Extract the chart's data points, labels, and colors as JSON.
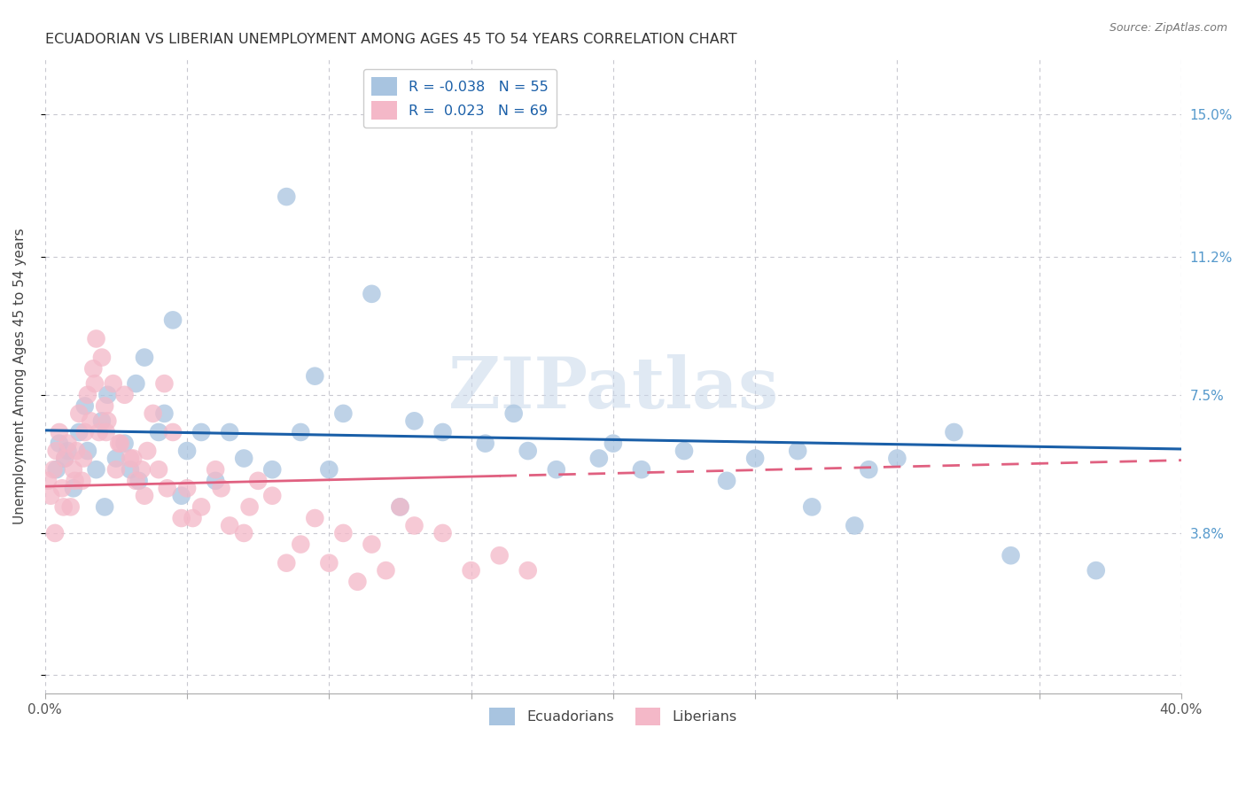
{
  "title": "ECUADORIAN VS LIBERIAN UNEMPLOYMENT AMONG AGES 45 TO 54 YEARS CORRELATION CHART",
  "source": "Source: ZipAtlas.com",
  "xlabel": "",
  "ylabel": "Unemployment Among Ages 45 to 54 years",
  "xlim": [
    0.0,
    40.0
  ],
  "ylim": [
    -0.5,
    16.5
  ],
  "yticks": [
    0.0,
    3.8,
    7.5,
    11.2,
    15.0
  ],
  "ytick_labels": [
    "",
    "3.8%",
    "7.5%",
    "11.2%",
    "15.0%"
  ],
  "xticks": [
    0.0,
    5.0,
    10.0,
    15.0,
    20.0,
    25.0,
    30.0,
    35.0,
    40.0
  ],
  "xtick_labels_show": [
    "0.0%",
    "",
    "",
    "",
    "",
    "",
    "",
    "",
    "40.0%"
  ],
  "blue_R": "-0.038",
  "blue_N": "55",
  "pink_R": "0.023",
  "pink_N": "69",
  "blue_color": "#a8c4e0",
  "pink_color": "#f4b8c8",
  "blue_line_color": "#1a5fa8",
  "pink_line_color": "#e06080",
  "background_color": "#ffffff",
  "grid_color": "#c8c8d0",
  "blue_trend_start_y": 6.55,
  "blue_trend_end_y": 6.05,
  "pink_trend_start_y": 5.05,
  "pink_trend_end_y": 5.75,
  "pink_solid_end_x": 16.0,
  "ecuadorians_x": [
    0.4,
    0.5,
    0.7,
    0.8,
    1.0,
    1.2,
    1.4,
    1.5,
    1.8,
    2.0,
    2.2,
    2.5,
    2.8,
    3.0,
    3.2,
    3.5,
    4.0,
    4.2,
    4.5,
    5.0,
    5.5,
    6.0,
    7.0,
    8.0,
    9.0,
    9.5,
    10.5,
    11.5,
    13.0,
    14.0,
    15.5,
    16.5,
    17.0,
    18.0,
    19.5,
    21.0,
    24.0,
    25.0,
    26.5,
    27.0,
    28.5,
    30.0,
    32.0,
    34.0,
    37.0,
    2.1,
    3.3,
    4.8,
    6.5,
    8.5,
    10.0,
    12.5,
    20.0,
    22.5,
    29.0
  ],
  "ecuadorians_y": [
    5.5,
    6.2,
    5.8,
    6.0,
    5.0,
    6.5,
    7.2,
    6.0,
    5.5,
    6.8,
    7.5,
    5.8,
    6.2,
    5.5,
    7.8,
    8.5,
    6.5,
    7.0,
    9.5,
    6.0,
    6.5,
    5.2,
    5.8,
    5.5,
    6.5,
    8.0,
    7.0,
    10.2,
    6.8,
    6.5,
    6.2,
    7.0,
    6.0,
    5.5,
    5.8,
    5.5,
    5.2,
    5.8,
    6.0,
    4.5,
    4.0,
    5.8,
    6.5,
    3.2,
    2.8,
    4.5,
    5.2,
    4.8,
    6.5,
    12.8,
    5.5,
    4.5,
    6.2,
    6.0,
    5.5
  ],
  "liberians_x": [
    0.1,
    0.2,
    0.3,
    0.4,
    0.5,
    0.6,
    0.7,
    0.8,
    0.9,
    1.0,
    1.1,
    1.2,
    1.3,
    1.4,
    1.5,
    1.6,
    1.7,
    1.8,
    1.9,
    2.0,
    2.1,
    2.2,
    2.4,
    2.5,
    2.6,
    2.8,
    3.0,
    3.2,
    3.4,
    3.6,
    3.8,
    4.0,
    4.2,
    4.5,
    4.8,
    5.0,
    5.5,
    6.0,
    6.5,
    7.0,
    7.5,
    8.0,
    8.5,
    9.0,
    9.5,
    10.0,
    10.5,
    11.0,
    11.5,
    12.0,
    12.5,
    13.0,
    14.0,
    15.0,
    16.0,
    17.0,
    0.35,
    0.65,
    1.05,
    1.35,
    1.75,
    2.15,
    2.65,
    3.1,
    3.5,
    4.3,
    5.2,
    6.2,
    7.2
  ],
  "liberians_y": [
    5.2,
    4.8,
    5.5,
    6.0,
    6.5,
    5.0,
    5.8,
    6.2,
    4.5,
    5.5,
    6.0,
    7.0,
    5.2,
    6.5,
    7.5,
    6.8,
    8.2,
    9.0,
    6.5,
    8.5,
    7.2,
    6.8,
    7.8,
    5.5,
    6.2,
    7.5,
    5.8,
    5.2,
    5.5,
    6.0,
    7.0,
    5.5,
    7.8,
    6.5,
    4.2,
    5.0,
    4.5,
    5.5,
    4.0,
    3.8,
    5.2,
    4.8,
    3.0,
    3.5,
    4.2,
    3.0,
    3.8,
    2.5,
    3.5,
    2.8,
    4.5,
    4.0,
    3.8,
    2.8,
    3.2,
    2.8,
    3.8,
    4.5,
    5.2,
    5.8,
    7.8,
    6.5,
    6.2,
    5.8,
    4.8,
    5.0,
    4.2,
    5.0,
    4.5
  ],
  "watermark": "ZIPatlas",
  "legend_ecuadorians": "Ecuadorians",
  "legend_liberians": "Liberians"
}
